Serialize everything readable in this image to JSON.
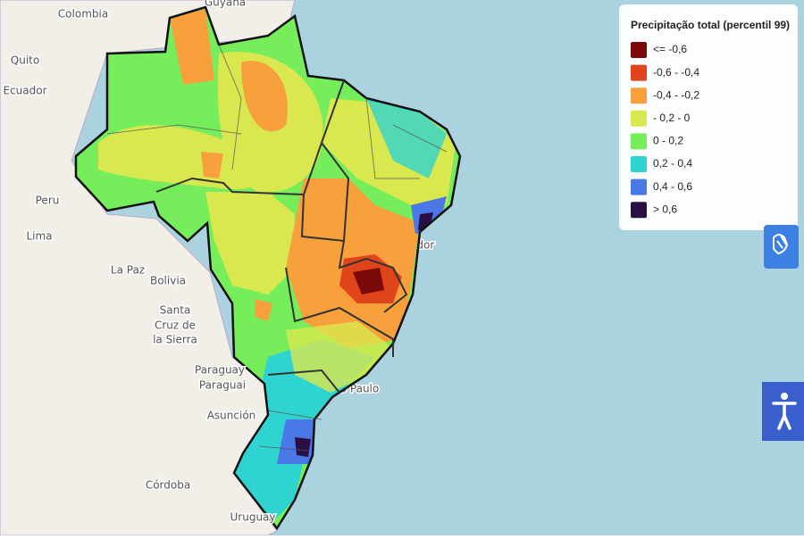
{
  "legend": {
    "title": "Precipitação total (percentil 99)",
    "items": [
      {
        "label": "<= -0,6",
        "color": "#7a0a0a"
      },
      {
        "label": "-0,6 - -0,4",
        "color": "#e0441a"
      },
      {
        "label": "-0,4 - -0,2",
        "color": "#f7a03c"
      },
      {
        "label": "- 0,2 - 0",
        "color": "#d9e84e"
      },
      {
        "label": "0 - 0,2",
        "color": "#76ee5c"
      },
      {
        "label": "0,2 - 0,4",
        "color": "#2fd3cf"
      },
      {
        "label": "0,4 - 0,6",
        "color": "#4a78e6"
      },
      {
        "label": "> 0,6",
        "color": "#2a1042"
      }
    ]
  },
  "places": [
    {
      "label": "Colombia"
    },
    {
      "label": "Guyana"
    },
    {
      "label": "Quito"
    },
    {
      "label": "Ecuador"
    },
    {
      "label": "Peru"
    },
    {
      "label": "Lima"
    },
    {
      "label": "La Paz"
    },
    {
      "label": "Bolivia"
    },
    {
      "label": "Santa"
    },
    {
      "label": "Cruz de"
    },
    {
      "label": "la Sierra"
    },
    {
      "label": "Paraguay"
    },
    {
      "label": "Paraguai"
    },
    {
      "label": "Asunción"
    },
    {
      "label": "Córdoba"
    },
    {
      "label": "Uruguay"
    },
    {
      "label": "Salvador"
    },
    {
      "label": "São Paulo"
    }
  ]
}
